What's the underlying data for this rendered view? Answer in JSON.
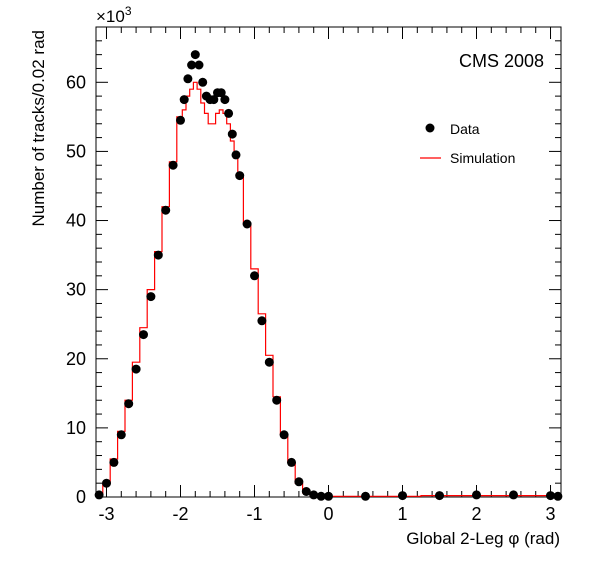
{
  "chart_data": {
    "type": "scatter",
    "annotation": "CMS 2008",
    "xlabel": "Global 2-Leg φ (rad)",
    "ylabel": "Number of tracks/0.02 rad",
    "y_multiplier": "×10",
    "y_multiplier_exp": "3",
    "xlim": [
      -3.1416,
      3.1416
    ],
    "ylim": [
      0,
      68
    ],
    "xticks": [
      -3,
      -2,
      -1,
      0,
      1,
      2,
      3
    ],
    "yticks": [
      0,
      10,
      20,
      30,
      40,
      50,
      60
    ],
    "grid": false,
    "legend_position": "top-right",
    "series": [
      {
        "name": "Data",
        "style": "markers",
        "color": "#000000",
        "x": [
          -3.1,
          -3.0,
          -2.9,
          -2.8,
          -2.7,
          -2.6,
          -2.5,
          -2.4,
          -2.3,
          -2.2,
          -2.1,
          -2.0,
          -1.95,
          -1.9,
          -1.85,
          -1.8,
          -1.75,
          -1.7,
          -1.65,
          -1.6,
          -1.55,
          -1.5,
          -1.45,
          -1.4,
          -1.35,
          -1.3,
          -1.25,
          -1.2,
          -1.1,
          -1.0,
          -0.9,
          -0.8,
          -0.7,
          -0.6,
          -0.5,
          -0.4,
          -0.3,
          -0.2,
          -0.1,
          0.0,
          0.5,
          1.0,
          1.5,
          2.0,
          2.5,
          3.0,
          3.1
        ],
        "values": [
          0.3,
          2.0,
          5.0,
          9.0,
          13.5,
          18.5,
          23.5,
          29.0,
          35.0,
          41.5,
          48.0,
          54.5,
          57.5,
          60.5,
          62.5,
          64.0,
          62.5,
          60.0,
          58.0,
          57.5,
          57.5,
          58.5,
          58.5,
          57.5,
          55.5,
          52.5,
          49.5,
          46.5,
          39.5,
          32.0,
          25.5,
          19.5,
          14.0,
          9.0,
          5.0,
          2.2,
          0.8,
          0.3,
          0.1,
          0.1,
          0.1,
          0.2,
          0.2,
          0.3,
          0.3,
          0.2,
          0.1
        ]
      },
      {
        "name": "Simulation",
        "style": "step",
        "color": "#ff0000",
        "x": [
          -3.1,
          -3.0,
          -2.9,
          -2.8,
          -2.7,
          -2.6,
          -2.5,
          -2.4,
          -2.3,
          -2.2,
          -2.1,
          -2.0,
          -1.95,
          -1.9,
          -1.85,
          -1.8,
          -1.75,
          -1.7,
          -1.65,
          -1.6,
          -1.55,
          -1.5,
          -1.45,
          -1.4,
          -1.35,
          -1.3,
          -1.25,
          -1.2,
          -1.1,
          -1.0,
          -0.9,
          -0.8,
          -0.7,
          -0.6,
          -0.5,
          -0.4,
          -0.3,
          -0.2,
          -0.1,
          0.0,
          0.5,
          1.0,
          1.5,
          2.0,
          2.5,
          3.0,
          3.1
        ],
        "values": [
          0.3,
          2.0,
          5.5,
          9.5,
          14.0,
          19.5,
          24.5,
          30.0,
          35.5,
          42.0,
          48.5,
          55.0,
          56.0,
          58.0,
          59.0,
          60.0,
          59.0,
          57.0,
          55.5,
          54.0,
          54.0,
          55.5,
          56.0,
          55.5,
          54.0,
          51.5,
          49.0,
          46.5,
          39.5,
          33.0,
          26.5,
          20.5,
          14.5,
          9.0,
          5.0,
          2.0,
          0.6,
          0.2,
          0.1,
          0.1,
          0.1,
          0.1,
          0.2,
          0.2,
          0.2,
          0.2,
          0.1
        ]
      }
    ]
  }
}
